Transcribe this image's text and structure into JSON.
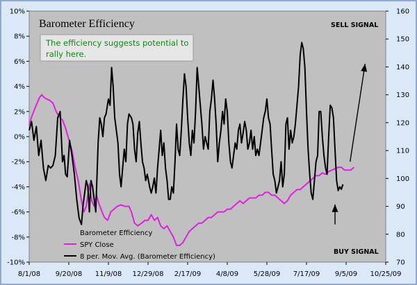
{
  "colors": {
    "page_bg": "#dbe8f8",
    "plot_bg": "#c0c0c0",
    "spy_line": "#e020e0",
    "efficiency_line": "#000000",
    "note_text": "#0b8a12",
    "note_bg": "#e6e6e6"
  },
  "chart_data": {
    "type": "line",
    "title": "Barometer Efficiency",
    "annotation": "The efficiency suggests potential to rally here.",
    "annotation_lines": [
      "The efficiency suggests potential to",
      "rally here."
    ],
    "sell_signal_label": "SELL SIGNAL",
    "buy_signal_label": "BUY SIGNAL",
    "x_tick_labels": [
      "8/1/08",
      "9/20/08",
      "11/9/08",
      "12/29/08",
      "2/17/09",
      "4/8/09",
      "5/28/09",
      "7/17/09",
      "9/5/09",
      "10/25/09"
    ],
    "x_range_days": [
      0,
      450
    ],
    "x_tick_interval_days": 50,
    "y_left": {
      "label": "",
      "range": [
        -10,
        10
      ],
      "ticks": [
        "-10%",
        "-8%",
        "-6%",
        "-4%",
        "-2%",
        "0%",
        "2%",
        "4%",
        "6%",
        "8%",
        "10%"
      ]
    },
    "y_right": {
      "label": "",
      "range": [
        70,
        160
      ],
      "ticks": [
        "70",
        "80",
        "90",
        "100",
        "110",
        "120",
        "130",
        "140",
        "150",
        "160"
      ]
    },
    "legend": {
      "title": "Barometer Efficiency",
      "entries": [
        "SPY Close",
        "8 per. Mov. Avg. (Barometer Efficiency)"
      ]
    },
    "series": [
      {
        "name": "SPY Close",
        "axis": "right",
        "points": [
          [
            0,
            119
          ],
          [
            3,
            122
          ],
          [
            7,
            125
          ],
          [
            10,
            127
          ],
          [
            13,
            129
          ],
          [
            16,
            130
          ],
          [
            19,
            129
          ],
          [
            22,
            128.5
          ],
          [
            26,
            128
          ],
          [
            30,
            127
          ],
          [
            34,
            124
          ],
          [
            38,
            122
          ],
          [
            42,
            121
          ],
          [
            46,
            118
          ],
          [
            50,
            114
          ],
          [
            54,
            110
          ],
          [
            58,
            104
          ],
          [
            62,
            99
          ],
          [
            66,
            92
          ],
          [
            69,
            88
          ],
          [
            72,
            90
          ],
          [
            76,
            98
          ],
          [
            79,
            92
          ],
          [
            82,
            90
          ],
          [
            85,
            94
          ],
          [
            88,
            91
          ],
          [
            92,
            88
          ],
          [
            95,
            86
          ],
          [
            99,
            85
          ],
          [
            103,
            88
          ],
          [
            107,
            89
          ],
          [
            111,
            90
          ],
          [
            116,
            90.5
          ],
          [
            121,
            90
          ],
          [
            126,
            90
          ],
          [
            129,
            88
          ],
          [
            133,
            84
          ],
          [
            137,
            83
          ],
          [
            142,
            84
          ],
          [
            146,
            85
          ],
          [
            150,
            85
          ],
          [
            154,
            87
          ],
          [
            158,
            85
          ],
          [
            162,
            86
          ],
          [
            166,
            83
          ],
          [
            170,
            82
          ],
          [
            174,
            83
          ],
          [
            178,
            81
          ],
          [
            182,
            79
          ],
          [
            186,
            76
          ],
          [
            190,
            76
          ],
          [
            194,
            77
          ],
          [
            198,
            79
          ],
          [
            202,
            81
          ],
          [
            206,
            82
          ],
          [
            210,
            83
          ],
          [
            214,
            84
          ],
          [
            218,
            84
          ],
          [
            222,
            85
          ],
          [
            226,
            86
          ],
          [
            230,
            86
          ],
          [
            234,
            87
          ],
          [
            238,
            88
          ],
          [
            242,
            88
          ],
          [
            246,
            88
          ],
          [
            250,
            89
          ],
          [
            254,
            89
          ],
          [
            258,
            90
          ],
          [
            262,
            91
          ],
          [
            266,
            92
          ],
          [
            270,
            91
          ],
          [
            274,
            92
          ],
          [
            278,
            93
          ],
          [
            282,
            93
          ],
          [
            286,
            93
          ],
          [
            290,
            94
          ],
          [
            294,
            94
          ],
          [
            298,
            95
          ],
          [
            302,
            95
          ],
          [
            306,
            94
          ],
          [
            310,
            94
          ],
          [
            314,
            93
          ],
          [
            318,
            92
          ],
          [
            322,
            91
          ],
          [
            326,
            92
          ],
          [
            330,
            94
          ],
          [
            334,
            95
          ],
          [
            338,
            96
          ],
          [
            342,
            96
          ],
          [
            346,
            97
          ],
          [
            350,
            98
          ],
          [
            354,
            99
          ],
          [
            358,
            100
          ],
          [
            362,
            101
          ],
          [
            366,
            101
          ],
          [
            370,
            102
          ],
          [
            374,
            101.5
          ],
          [
            378,
            102.5
          ],
          [
            382,
            103
          ],
          [
            386,
            103.5
          ],
          [
            390,
            104
          ],
          [
            394,
            104
          ],
          [
            398,
            103
          ],
          [
            402,
            103
          ],
          [
            406,
            103
          ],
          [
            410,
            104
          ]
        ]
      },
      {
        "name": "8 per. Mov. Avg. (Barometer Efficiency)",
        "axis": "left",
        "points": [
          [
            0,
            0.5
          ],
          [
            3,
            1.2
          ],
          [
            6,
            -0.3
          ],
          [
            9,
            0.8
          ],
          [
            12,
            -1.5
          ],
          [
            15,
            -0.3
          ],
          [
            18,
            -2.5
          ],
          [
            21,
            -3.5
          ],
          [
            24,
            -2.3
          ],
          [
            27,
            -2.5
          ],
          [
            30,
            -2.3
          ],
          [
            33,
            -1.5
          ],
          [
            36,
            1.5
          ],
          [
            39,
            2
          ],
          [
            42,
            -2
          ],
          [
            44,
            -1.5
          ],
          [
            46,
            -3
          ],
          [
            48,
            -3.2
          ],
          [
            51,
            -0.3
          ],
          [
            54,
            -1.5
          ],
          [
            57,
            -3
          ],
          [
            60,
            -5
          ],
          [
            63,
            -6.5
          ],
          [
            66,
            -7
          ],
          [
            68,
            -5.5
          ],
          [
            70,
            -4.5
          ],
          [
            72,
            -3.5
          ],
          [
            74,
            -4
          ],
          [
            76,
            -6
          ],
          [
            78,
            -3.5
          ],
          [
            80,
            -4
          ],
          [
            82,
            -5
          ],
          [
            84,
            -6
          ],
          [
            87,
            -0.5
          ],
          [
            89,
            1.5
          ],
          [
            91,
            1
          ],
          [
            93,
            0
          ],
          [
            95,
            1.5
          ],
          [
            97,
            1.8
          ],
          [
            100,
            3
          ],
          [
            102,
            2.5
          ],
          [
            104,
            5.5
          ],
          [
            106,
            4
          ],
          [
            108,
            1.5
          ],
          [
            110,
            0.5
          ],
          [
            112,
            -0.5
          ],
          [
            114,
            -3
          ],
          [
            116,
            -4
          ],
          [
            118,
            -2.5
          ],
          [
            120,
            -1
          ],
          [
            122,
            -2
          ],
          [
            124,
            1
          ],
          [
            126,
            1.8
          ],
          [
            129,
            1.5
          ],
          [
            131,
            1
          ],
          [
            133,
            -1
          ],
          [
            135,
            -2
          ],
          [
            137,
            0.3
          ],
          [
            139,
            1.2
          ],
          [
            141,
            -0.5
          ],
          [
            143,
            -2
          ],
          [
            145,
            -2.5
          ],
          [
            147,
            -3.5
          ],
          [
            149,
            -3
          ],
          [
            152,
            -4
          ],
          [
            154,
            -4.5
          ],
          [
            156,
            -4
          ],
          [
            158,
            -3.3
          ],
          [
            160,
            -4.5
          ],
          [
            162,
            -2.5
          ],
          [
            164,
            -1
          ],
          [
            166,
            0.5
          ],
          [
            168,
            -1.5
          ],
          [
            170,
            -0.5
          ],
          [
            172,
            -2.5
          ],
          [
            174,
            -3.5
          ],
          [
            176,
            -5
          ],
          [
            178,
            -5
          ],
          [
            180,
            -4
          ],
          [
            182,
            -4.5
          ],
          [
            184,
            -2
          ],
          [
            186,
            1
          ],
          [
            188,
            -1
          ],
          [
            190,
            -1.5
          ],
          [
            192,
            0.5
          ],
          [
            194,
            3
          ],
          [
            196,
            5
          ],
          [
            198,
            4
          ],
          [
            200,
            1.5
          ],
          [
            202,
            -0.5
          ],
          [
            204,
            -1.5
          ],
          [
            206,
            0.5
          ],
          [
            208,
            -0.5
          ],
          [
            210,
            2
          ],
          [
            212,
            5.5
          ],
          [
            214,
            4
          ],
          [
            216,
            2.5
          ],
          [
            218,
            1
          ],
          [
            220,
            -1
          ],
          [
            222,
            0
          ],
          [
            224,
            -0.5
          ],
          [
            226,
            -1
          ],
          [
            228,
            2
          ],
          [
            230,
            3
          ],
          [
            232,
            4.5
          ],
          [
            234,
            3
          ],
          [
            236,
            1
          ],
          [
            238,
            -2
          ],
          [
            240,
            -0.5
          ],
          [
            242,
            0.5
          ],
          [
            244,
            2
          ],
          [
            246,
            1
          ],
          [
            248,
            3
          ],
          [
            250,
            2
          ],
          [
            252,
            -0.5
          ],
          [
            254,
            -2
          ],
          [
            256,
            -2.5
          ],
          [
            258,
            -1.5
          ],
          [
            260,
            -0.5
          ],
          [
            262,
            -1
          ],
          [
            264,
            0.5
          ],
          [
            266,
            1
          ],
          [
            268,
            -0.5
          ],
          [
            270,
            0.3
          ],
          [
            272,
            1.2
          ],
          [
            274,
            0.5
          ],
          [
            276,
            -1
          ],
          [
            278,
            -0.5
          ],
          [
            280,
            0.5
          ],
          [
            282,
            -1
          ],
          [
            284,
            0
          ],
          [
            286,
            -1.5
          ],
          [
            288,
            -1
          ],
          [
            290,
            -1.5
          ],
          [
            292,
            -0.5
          ],
          [
            294,
            0.5
          ],
          [
            296,
            1.5
          ],
          [
            298,
            2
          ],
          [
            300,
            3
          ],
          [
            302,
            1.5
          ],
          [
            304,
            1
          ],
          [
            306,
            -1
          ],
          [
            308,
            -3
          ],
          [
            310,
            -3.5
          ],
          [
            312,
            -4.5
          ],
          [
            314,
            -4
          ],
          [
            316,
            -3.5
          ],
          [
            318,
            -2
          ],
          [
            320,
            -4
          ],
          [
            322,
            -3
          ],
          [
            324,
            1
          ],
          [
            326,
            1.5
          ],
          [
            328,
            -1
          ],
          [
            330,
            0.5
          ],
          [
            332,
            -0.5
          ],
          [
            334,
            0
          ],
          [
            336,
            1
          ],
          [
            338,
            2.5
          ],
          [
            340,
            4
          ],
          [
            342,
            6.5
          ],
          [
            344,
            7.5
          ],
          [
            346,
            7
          ],
          [
            348,
            5.5
          ],
          [
            350,
            2
          ],
          [
            352,
            -1
          ],
          [
            354,
            -3
          ],
          [
            356,
            -4.5
          ],
          [
            358,
            -5
          ],
          [
            360,
            -3.5
          ],
          [
            362,
            -2
          ],
          [
            364,
            -1.5
          ],
          [
            366,
            2
          ],
          [
            368,
            2
          ],
          [
            370,
            0
          ],
          [
            372,
            -1.5
          ],
          [
            374,
            -2.5
          ],
          [
            376,
            -3
          ],
          [
            378,
            0
          ],
          [
            380,
            2.5
          ],
          [
            382,
            2.3
          ],
          [
            384,
            1.5
          ],
          [
            386,
            -1
          ],
          [
            388,
            -3.5
          ],
          [
            390,
            -4.3
          ],
          [
            392,
            -4
          ],
          [
            394,
            -4.2
          ],
          [
            396,
            -3.8
          ]
        ]
      }
    ],
    "arrows": [
      {
        "name": "up-trend-arrow",
        "from": [
          405,
          -2
        ],
        "to": [
          424,
          5.8
        ]
      },
      {
        "name": "buy-arrow",
        "from": [
          386,
          -7
        ],
        "to": [
          386,
          -5.4
        ]
      }
    ]
  }
}
